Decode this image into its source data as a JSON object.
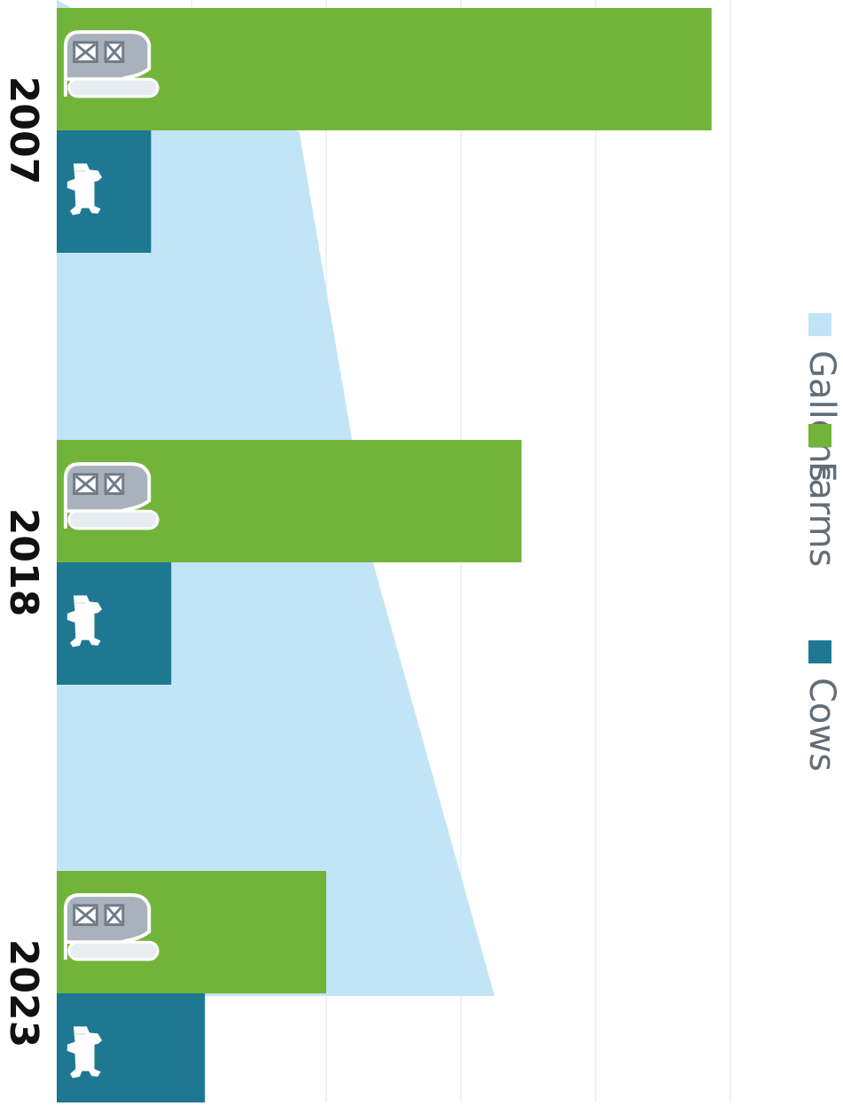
{
  "chart_data": {
    "type": "bar",
    "orientation": "horizontal",
    "rotated_page_orientation": "rotated 90 degrees clockwise",
    "categories": [
      "2007",
      "2018",
      "2023"
    ],
    "series": [
      {
        "name": "Gallons",
        "type": "area",
        "color": "#bfe3f7",
        "values": [
          1.8,
          2.35,
          3.25
        ]
      },
      {
        "name": "Farms",
        "type": "bar",
        "color": "#72b43a",
        "icon": "barn-icon",
        "values": [
          4.86,
          3.45,
          2.0
        ]
      },
      {
        "name": "Cows",
        "type": "bar",
        "color": "#1f7891",
        "icon": "cow-icon",
        "values": [
          0.7,
          0.85,
          1.1
        ]
      }
    ],
    "xlim": [
      0,
      5
    ],
    "grid": true,
    "legend": {
      "placement": "right",
      "items": [
        "Gallons",
        "Farms",
        "Cows"
      ]
    },
    "title": "",
    "xlabel": "",
    "ylabel": ""
  }
}
